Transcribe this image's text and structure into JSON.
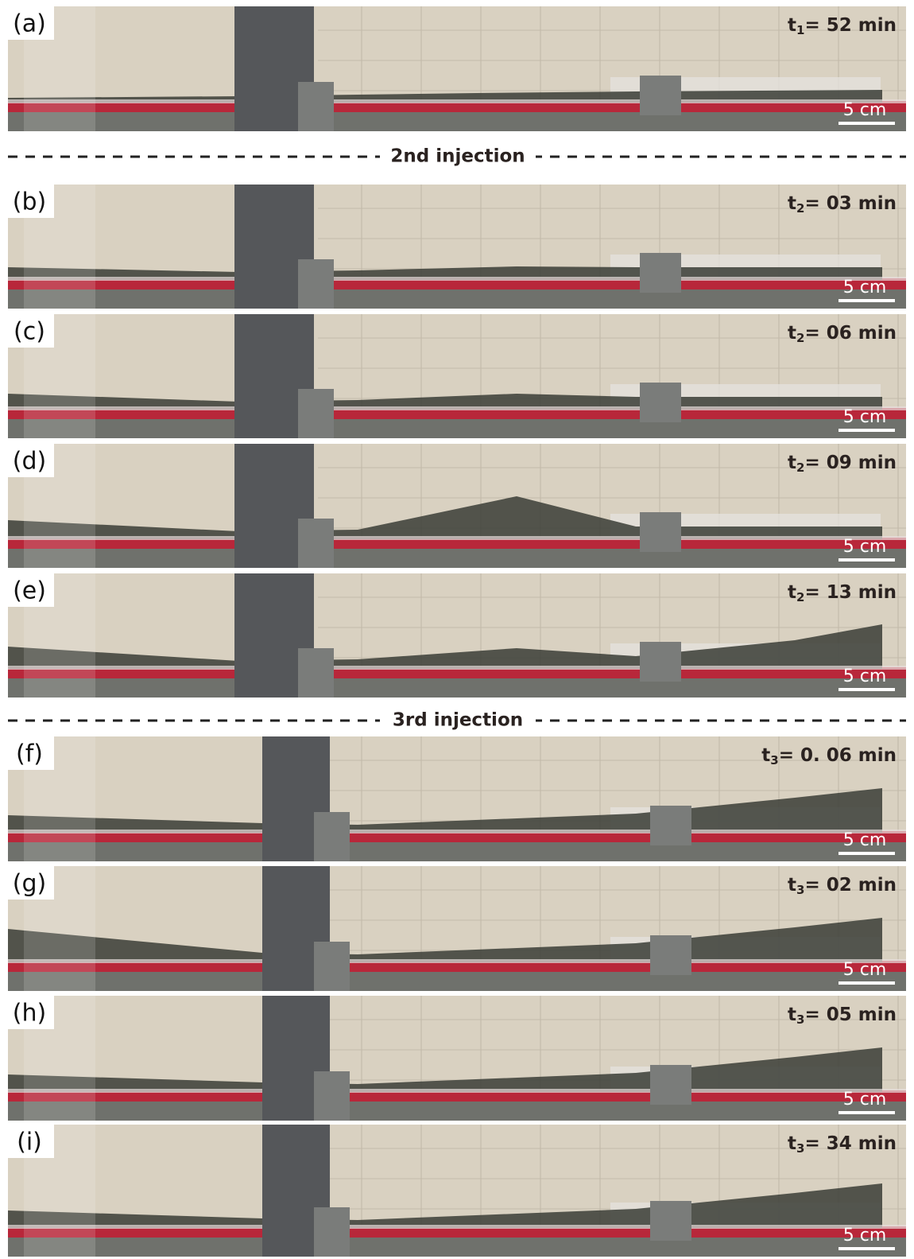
{
  "panels": [
    {
      "label": "(a)",
      "time": {
        "var": "t",
        "sub": "1",
        "rest": "= 52 min"
      },
      "scale": "5 cm"
    },
    {
      "label": "(b)",
      "time": {
        "var": "t",
        "sub": "2",
        "rest": "= 03 min"
      },
      "scale": "5 cm"
    },
    {
      "label": "(c)",
      "time": {
        "var": "t",
        "sub": "2",
        "rest": "= 06 min"
      },
      "scale": "5 cm"
    },
    {
      "label": "(d)",
      "time": {
        "var": "t",
        "sub": "2",
        "rest": "= 09 min"
      },
      "scale": "5 cm"
    },
    {
      "label": "(e)",
      "time": {
        "var": "t",
        "sub": "2",
        "rest": "= 13 min"
      },
      "scale": "5 cm"
    },
    {
      "label": "(f)",
      "time": {
        "var": "t",
        "sub": "3",
        "rest": "= 0. 06 min"
      },
      "scale": "5 cm"
    },
    {
      "label": "(g)",
      "time": {
        "var": "t",
        "sub": "3",
        "rest": "= 02 min"
      },
      "scale": "5 cm"
    },
    {
      "label": "(h)",
      "time": {
        "var": "t",
        "sub": "3",
        "rest": "= 05 min"
      },
      "scale": "5 cm"
    },
    {
      "label": "(i)",
      "time": {
        "var": "t",
        "sub": "3",
        "rest": "= 34 min"
      },
      "scale": "5 cm"
    }
  ],
  "dividers": [
    "2nd injection",
    "3rd injection"
  ]
}
